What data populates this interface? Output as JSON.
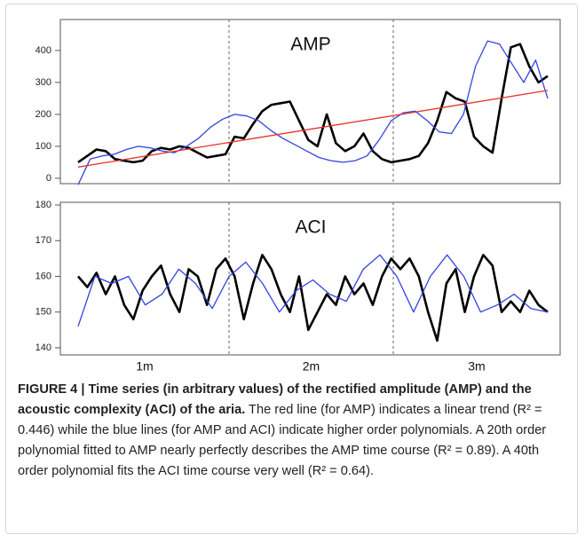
{
  "chart_data": [
    {
      "type": "line",
      "title": "AMP",
      "ylim": [
        -17,
        497
      ],
      "yticks": [
        0,
        100,
        200,
        300,
        400
      ],
      "series": [
        {
          "color": "#000000",
          "values": [
            50,
            70,
            90,
            85,
            60,
            55,
            50,
            55,
            85,
            95,
            90,
            100,
            95,
            80,
            65,
            70,
            75,
            130,
            125,
            170,
            210,
            230,
            235,
            240,
            180,
            120,
            100,
            200,
            110,
            85,
            100,
            140,
            85,
            60,
            50,
            55,
            60,
            70,
            110,
            180,
            270,
            250,
            240,
            130,
            100,
            80,
            250,
            410,
            420,
            350,
            300,
            320
          ]
        },
        {
          "color": "#3344dd",
          "values": [
            -20,
            60,
            70,
            75,
            90,
            100,
            95,
            85,
            80,
            100,
            125,
            160,
            185,
            200,
            195,
            180,
            150,
            125,
            105,
            85,
            65,
            55,
            50,
            55,
            70,
            120,
            180,
            205,
            210,
            180,
            145,
            140,
            200,
            350,
            430,
            420,
            360,
            300,
            370,
            250
          ]
        },
        {
          "color": "#e8322a",
          "values": [
            35,
            275
          ]
        }
      ]
    },
    {
      "type": "line",
      "title": "ACI",
      "ylim": [
        138,
        180.75
      ],
      "yticks": [
        140,
        150,
        160,
        170,
        180
      ],
      "segments": [
        "1m",
        "2m",
        "3m"
      ],
      "series": [
        {
          "color": "#000000",
          "values": [
            160,
            157,
            161,
            155,
            160,
            152,
            148,
            156,
            160,
            163,
            155,
            150,
            162,
            160,
            152,
            162,
            165,
            160,
            148,
            158,
            166,
            162,
            155,
            150,
            160,
            145,
            150,
            155,
            152,
            160,
            155,
            158,
            152,
            160,
            165,
            162,
            165,
            160,
            150,
            142,
            158,
            162,
            150,
            160,
            166,
            163,
            150,
            153,
            150,
            156,
            152,
            150
          ]
        },
        {
          "color": "#3344dd",
          "values": [
            146,
            160,
            158,
            160,
            152,
            155,
            162,
            158,
            151,
            160,
            164,
            158,
            150,
            156,
            159,
            155,
            153,
            162,
            166,
            160,
            150,
            160,
            166,
            160,
            150,
            152,
            155,
            151,
            150
          ]
        }
      ]
    }
  ],
  "caption": {
    "title": "FIGURE 4 | Time series (in arbitrary values) of the rectified amplitude (AMP) and the acoustic complexity (ACI) of the aria.",
    "text": " The red line (for AMP) indicates a linear trend (R² = 0.446) while the blue lines (for AMP and ACI) indicate higher order polynomials. A 20th order polynomial fitted to AMP nearly perfectly describes the AMP time course (R² = 0.89). A 40th order polynomial fits the ACI time course very well (R² = 0.64)."
  }
}
